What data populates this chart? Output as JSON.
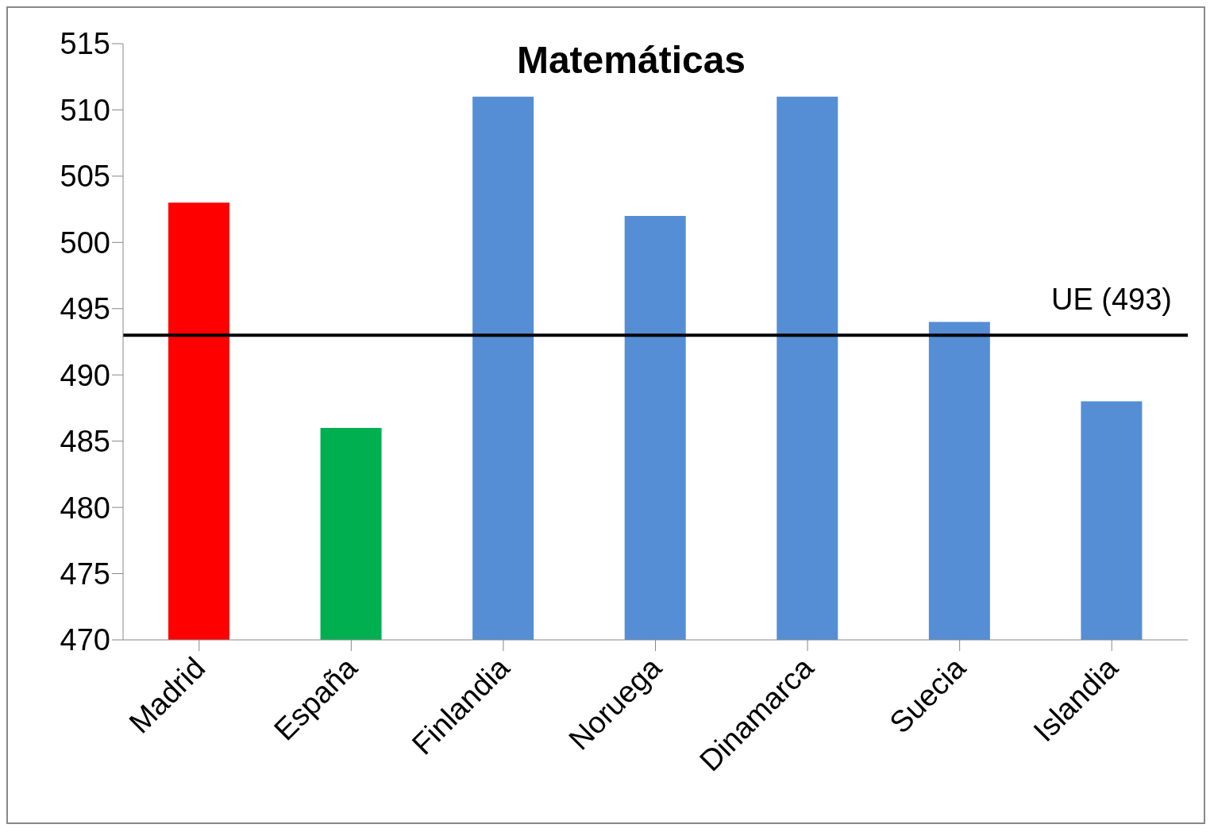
{
  "chart_data": {
    "type": "bar",
    "title": "Matemáticas",
    "categories": [
      "Madrid",
      "España",
      "Finlandia",
      "Noruega",
      "Dinamarca",
      "Suecia",
      "Islandia"
    ],
    "values": [
      503,
      486,
      511,
      502,
      511,
      494,
      488
    ],
    "colors": [
      "#ff0000",
      "#00b050",
      "#558ed5",
      "#558ed5",
      "#558ed5",
      "#558ed5",
      "#558ed5"
    ],
    "ylim": [
      470,
      515
    ],
    "yticks": [
      470,
      475,
      480,
      485,
      490,
      495,
      500,
      505,
      510,
      515
    ],
    "ref_lines": [
      {
        "axis": "y",
        "value": 493,
        "label": "UE (493)",
        "color": "#000000"
      }
    ],
    "grid": false,
    "legend": false
  }
}
